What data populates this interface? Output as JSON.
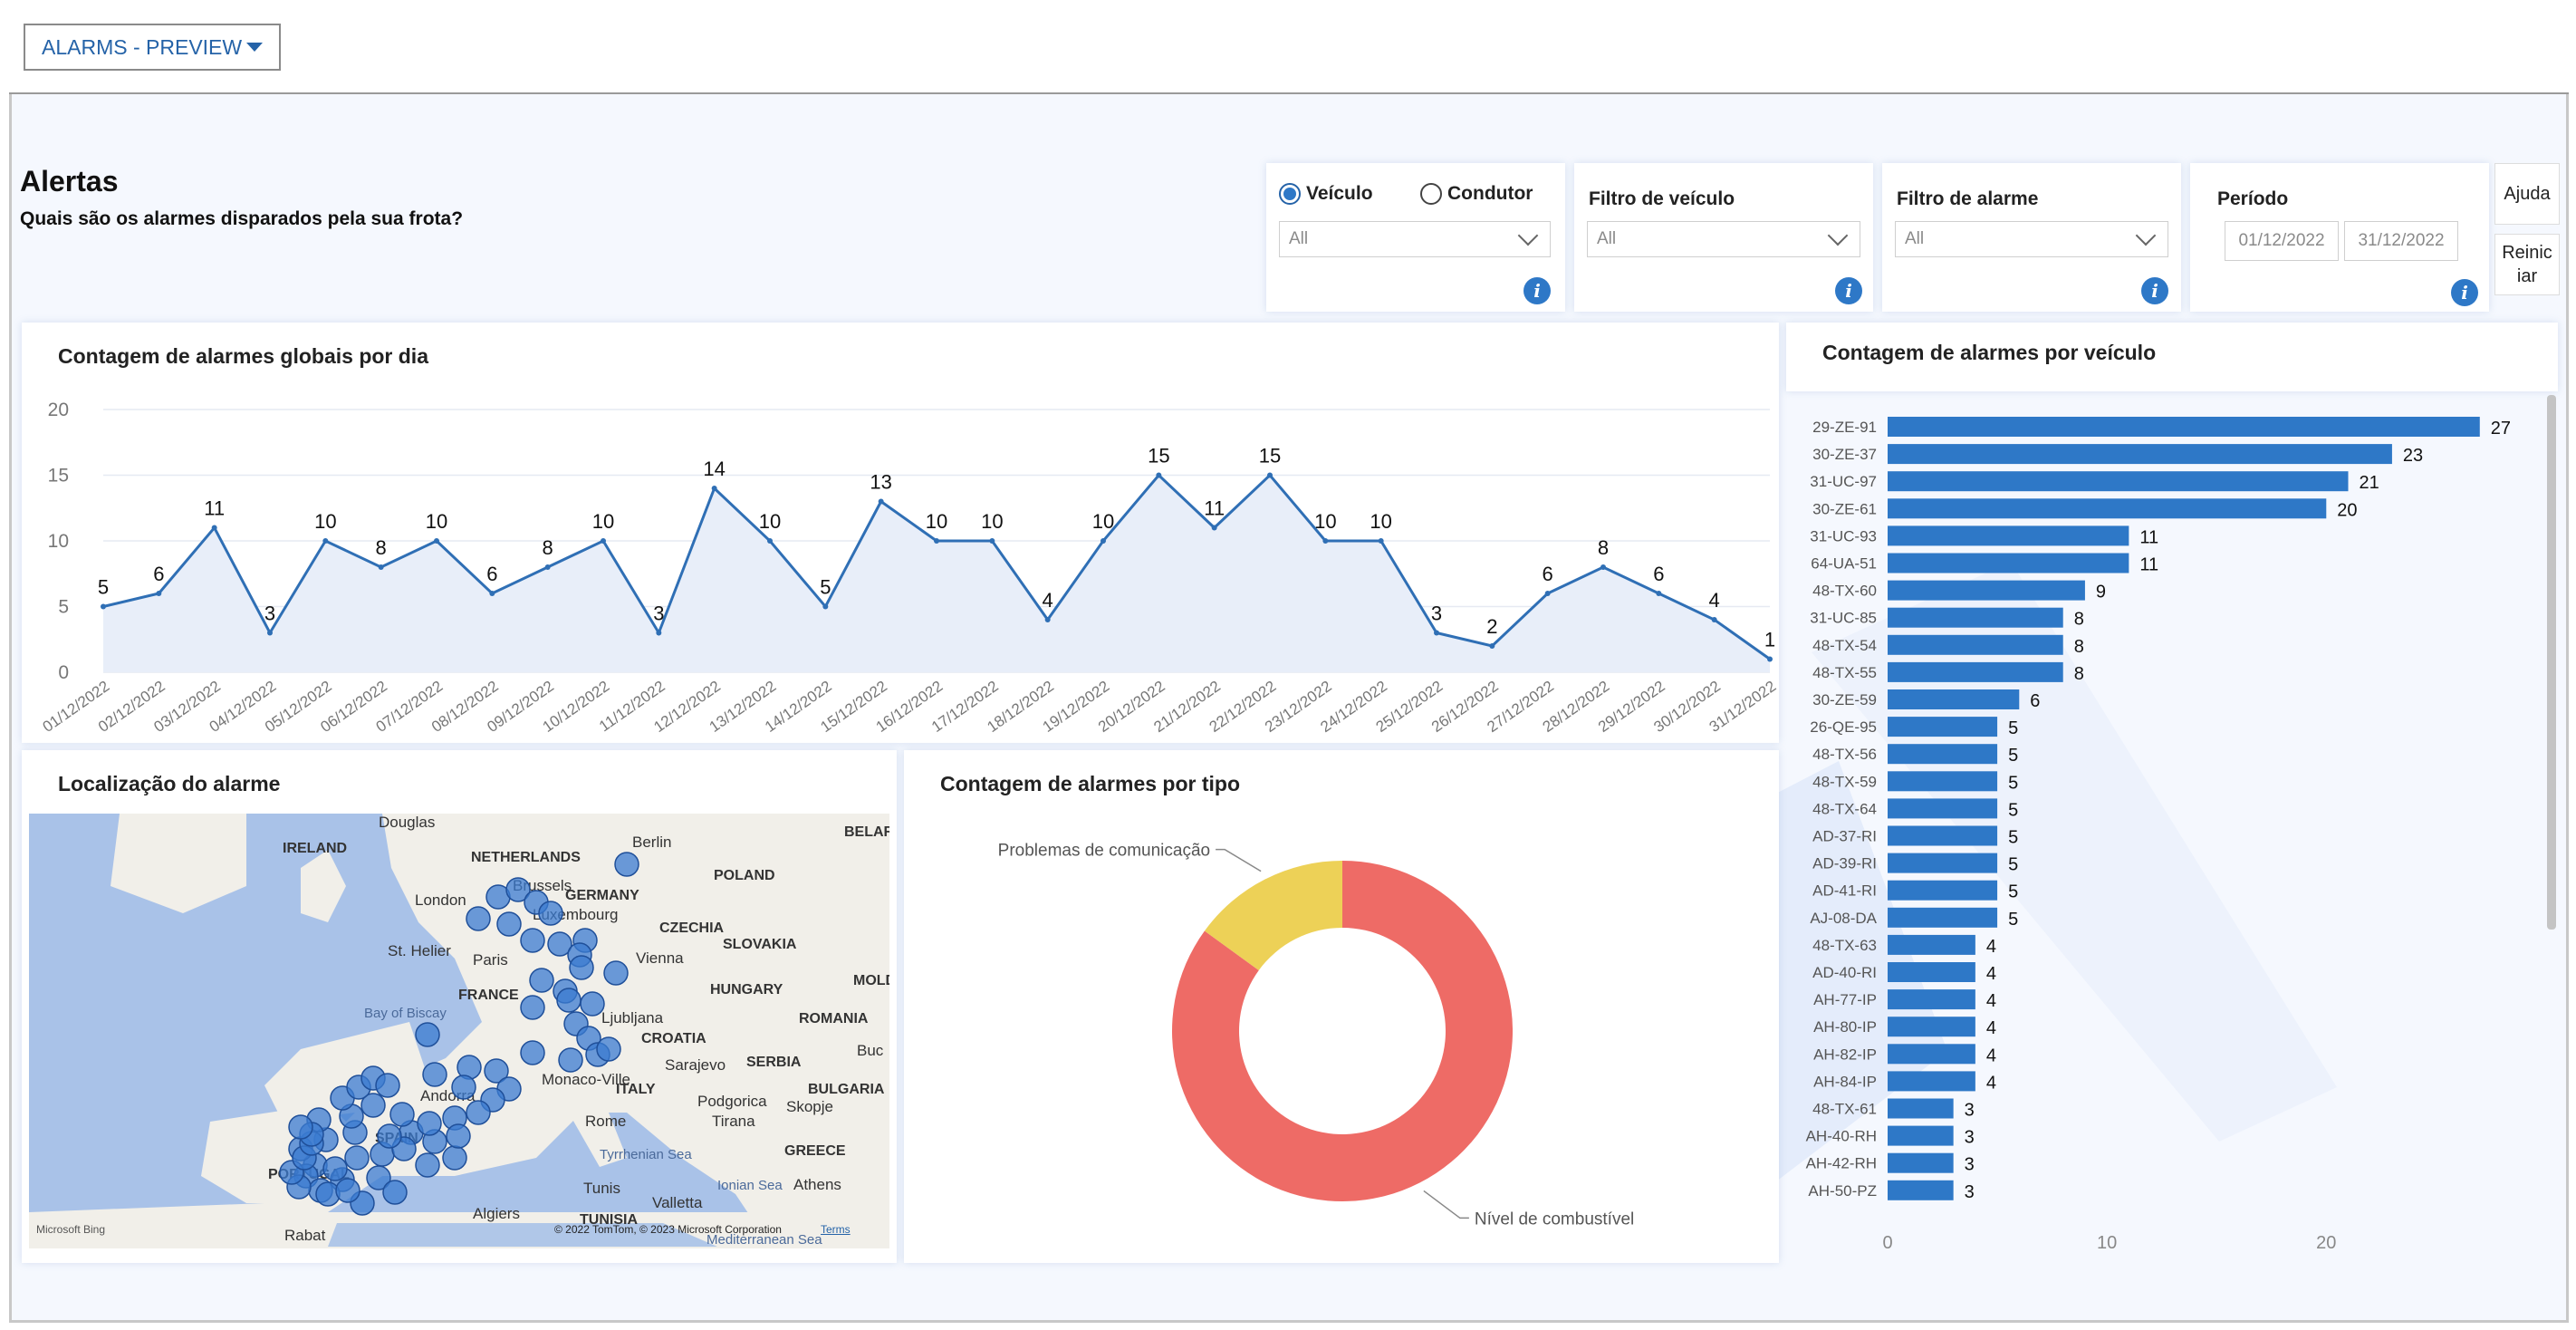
{
  "page_selector": {
    "label": "ALARMS - PREVIEW"
  },
  "header": {
    "title": "Alertas",
    "subtitle": "Quais são os alarmes disparados pela sua frota?"
  },
  "slicers": {
    "mode": {
      "options": [
        "Veículo",
        "Condutor"
      ],
      "selected": "Veículo",
      "value": "All"
    },
    "vehicle_filter": {
      "title": "Filtro de veículo",
      "value": "All"
    },
    "alarm_filter": {
      "title": "Filtro de alarme",
      "value": "All"
    },
    "period": {
      "title": "Período",
      "start": "01/12/2022",
      "end": "31/12/2022"
    }
  },
  "buttons": {
    "help": "Ajuda",
    "reset": "Reiniciar"
  },
  "icons": {
    "info": "info-icon",
    "dropdown": "chevron-down-icon",
    "page_caret": "caret-down-icon"
  },
  "colors": {
    "accent": "#2e78c7",
    "line": "#2f6fb5",
    "area": "#e8eef9",
    "donut_red": "#ee6b66",
    "donut_yellow": "#edd157"
  },
  "line_chart": {
    "title": "Contagem de alarmes globais por dia",
    "chart_data": {
      "type": "line",
      "x": [
        "01/12/2022",
        "02/12/2022",
        "03/12/2022",
        "04/12/2022",
        "05/12/2022",
        "06/12/2022",
        "07/12/2022",
        "08/12/2022",
        "09/12/2022",
        "10/12/2022",
        "11/12/2022",
        "12/12/2022",
        "13/12/2022",
        "14/12/2022",
        "15/12/2022",
        "16/12/2022",
        "17/12/2022",
        "18/12/2022",
        "19/12/2022",
        "20/12/2022",
        "21/12/2022",
        "22/12/2022",
        "23/12/2022",
        "24/12/2022",
        "25/12/2022",
        "26/12/2022",
        "27/12/2022",
        "28/12/2022",
        "29/12/2022",
        "30/12/2022",
        "31/12/2022"
      ],
      "values": [
        5,
        6,
        11,
        3,
        10,
        8,
        10,
        6,
        8,
        10,
        3,
        14,
        10,
        5,
        13,
        10,
        10,
        4,
        10,
        15,
        11,
        15,
        10,
        10,
        3,
        2,
        6,
        8,
        6,
        4,
        1
      ],
      "yticks": [
        0,
        5,
        10,
        15,
        20
      ],
      "ylim": [
        0,
        20
      ]
    }
  },
  "map": {
    "title": "Localização do alarme",
    "labels": [
      "IRELAND",
      "NETHERLANDS",
      "Berlin",
      "POLAND",
      "BELAR",
      "London",
      "Brussels",
      "GERMANY",
      "Luxembourg",
      "CZECHIA",
      "SLOVAKIA",
      "St. Helier",
      "Paris",
      "Vienna",
      "FRANCE",
      "HUNGARY",
      "MOLD",
      "Bay of Biscay",
      "Ljubljana",
      "CROATIA",
      "ROMANIA",
      "Sarajevo",
      "SERBIA",
      "Buc",
      "Andorra",
      "Monaco-Ville",
      "ITALY",
      "BULGARIA",
      "Podgorica",
      "Skopje",
      "Rome",
      "Tirana",
      "SPAIN",
      "GREECE",
      "PORTUGAL",
      "Tyrrhenian Sea",
      "Ionian Sea",
      "Athens",
      "Tunis",
      "Valletta",
      "Algiers",
      "TUNISIA",
      "Rabat",
      "Mediterranean Sea",
      "Douglas"
    ],
    "attribution": "© 2022 TomTom, © 2023 Microsoft Corporation",
    "terms": "Terms",
    "provider": "Microsoft Bing"
  },
  "donut": {
    "title": "Contagem de alarmes por tipo",
    "chart_data": {
      "type": "pie",
      "slices": [
        {
          "label": "Nível de combustível",
          "value": 85
        },
        {
          "label": "Problemas de comunicação",
          "value": 15
        }
      ]
    }
  },
  "bar_chart": {
    "title": "Contagem de alarmes por veículo",
    "chart_data": {
      "type": "bar",
      "categories": [
        "29-ZE-91",
        "30-ZE-37",
        "31-UC-97",
        "30-ZE-61",
        "31-UC-93",
        "64-UA-51",
        "48-TX-60",
        "31-UC-85",
        "48-TX-54",
        "48-TX-55",
        "30-ZE-59",
        "26-QE-95",
        "48-TX-56",
        "48-TX-59",
        "48-TX-64",
        "AD-37-RI",
        "AD-39-RI",
        "AD-41-RI",
        "AJ-08-DA",
        "48-TX-63",
        "AD-40-RI",
        "AH-77-IP",
        "AH-80-IP",
        "AH-82-IP",
        "AH-84-IP",
        "48-TX-61",
        "AH-40-RH",
        "AH-42-RH",
        "AH-50-PZ"
      ],
      "values": [
        27,
        23,
        21,
        20,
        11,
        11,
        9,
        8,
        8,
        8,
        6,
        5,
        5,
        5,
        5,
        5,
        5,
        5,
        5,
        4,
        4,
        4,
        4,
        4,
        4,
        3,
        3,
        3,
        3
      ],
      "xticks": [
        0,
        10,
        20
      ],
      "xlim": [
        0,
        28
      ]
    }
  }
}
